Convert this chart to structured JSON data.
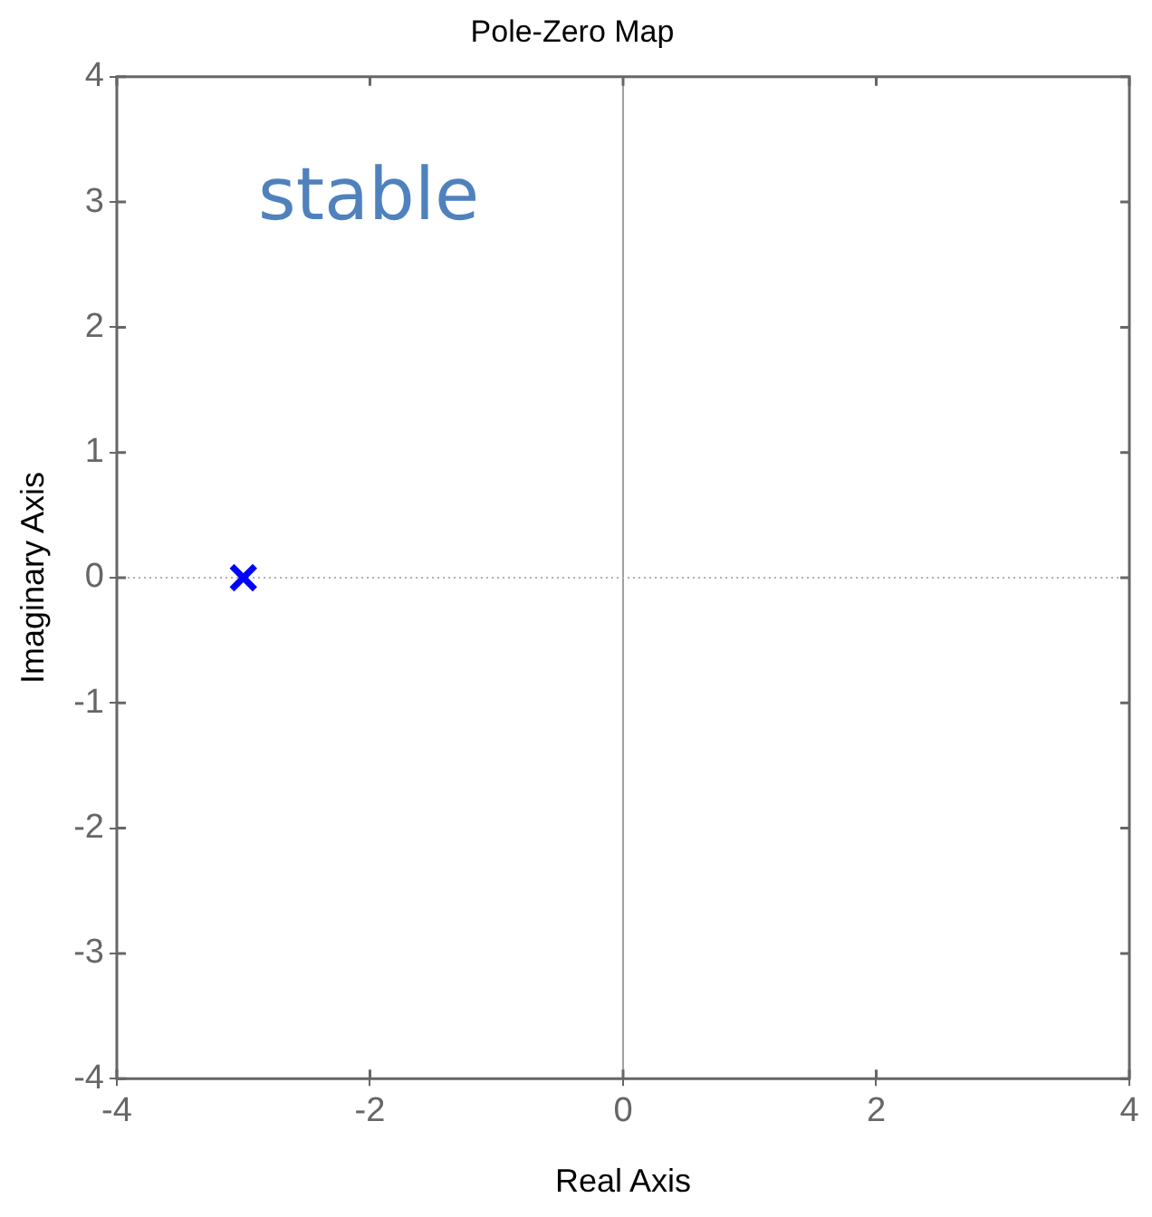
{
  "chart_data": {
    "type": "scatter",
    "title": "Pole-Zero Map",
    "xlabel": "Real Axis",
    "ylabel": "Imaginary Axis",
    "series": [
      {
        "color": "#0000ff",
        "x": [
          -3
        ],
        "values": [
          0
        ]
      }
    ],
    "marker": "cross",
    "xlim": [
      -4,
      4
    ],
    "ylim": [
      -4,
      4
    ],
    "xticks": [
      -4,
      -2,
      0,
      2,
      4
    ],
    "yticks": [
      -4,
      -3,
      -2,
      -1,
      0,
      1,
      2,
      3,
      4
    ],
    "grid": false,
    "legend": false,
    "ref_lines": [
      {
        "axis": "x",
        "value": 0,
        "color": "#a0a0a0",
        "line_style": "solid"
      },
      {
        "axis": "y",
        "value": 0,
        "color": "#b0b0b0",
        "line_style": "dotted"
      }
    ],
    "annotations": [
      "stable"
    ]
  }
}
